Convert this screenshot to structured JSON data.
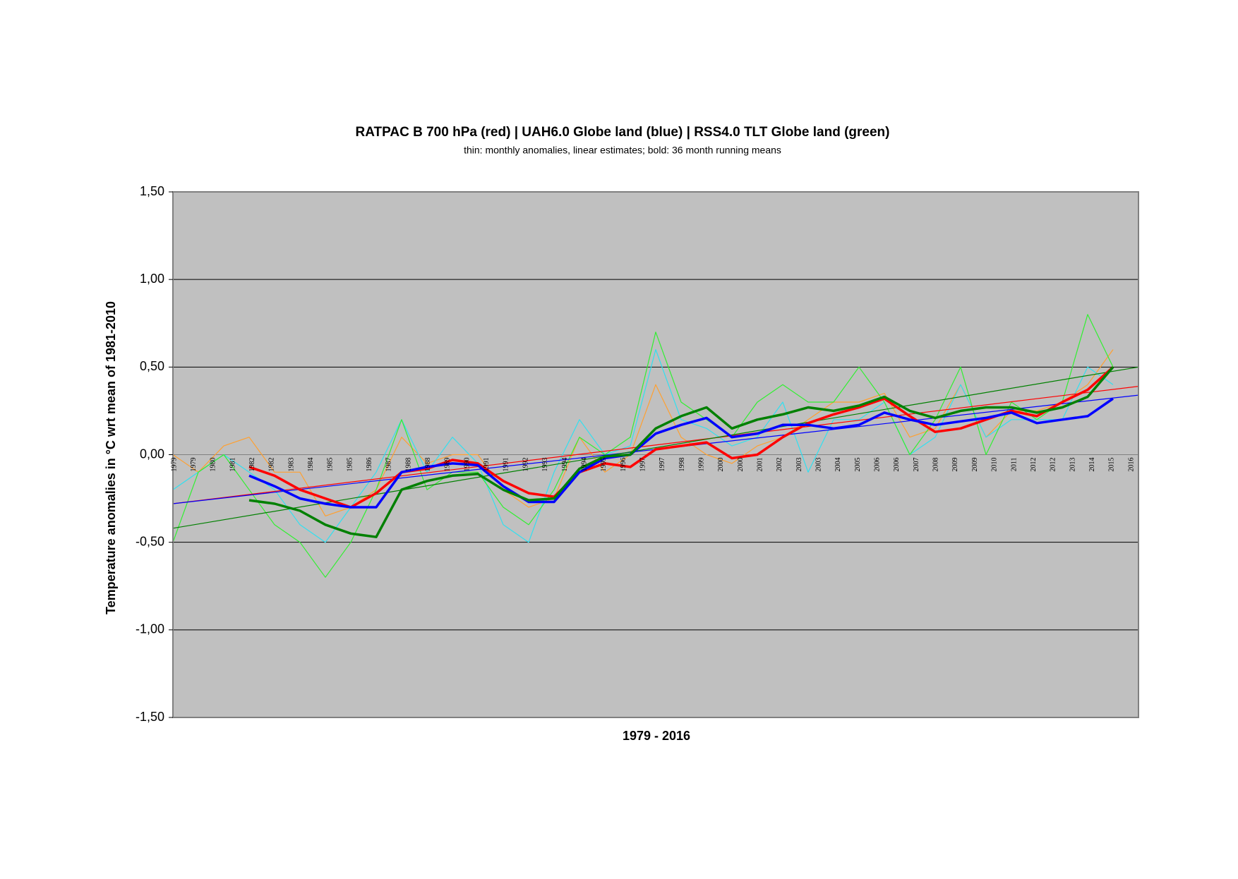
{
  "chart_data": {
    "type": "line",
    "title": "RATPAC B 700 hPa (red) | UAH6.0 Globe land (blue) | RSS4.0 TLT Globe land (green)",
    "subtitle": "thin: monthly anomalies, linear estimates; bold: 36 month running means",
    "y_label": "Temperature anomalies in °C wrt mean of 1981-2010",
    "x_label": "1979 - 2016",
    "xlim": [
      1979,
      2017
    ],
    "ylim": [
      -1.5,
      1.5
    ],
    "yticks": [
      {
        "value": -1.5,
        "label": "-1,50"
      },
      {
        "value": -1,
        "label": "-1,00"
      },
      {
        "value": -0.5,
        "label": "-0,50"
      },
      {
        "value": 0,
        "label": "0,00"
      },
      {
        "value": 0.5,
        "label": "0,50"
      },
      {
        "value": 1,
        "label": "1,00"
      },
      {
        "value": 1.5,
        "label": "1,50"
      }
    ],
    "grid": true,
    "year_labels": [
      "1979",
      "1979",
      "1980",
      "1981",
      "1982",
      "1982",
      "1983",
      "1984",
      "1985",
      "1985",
      "1986",
      "1987",
      "1988",
      "1988",
      "1989",
      "1990",
      "1991",
      "1991",
      "1992",
      "1993",
      "1994",
      "1994",
      "1995",
      "1996",
      "1997",
      "1997",
      "1998",
      "1999",
      "2000",
      "2000",
      "2001",
      "2002",
      "2003",
      "2003",
      "2004",
      "2005",
      "2006",
      "2006",
      "2007",
      "2008",
      "2009",
      "2009",
      "2010",
      "2011",
      "2012",
      "2012",
      "2013",
      "2014",
      "2015",
      "2016"
    ],
    "series": [
      {
        "color": "#ffa030",
        "style": "thin",
        "x": [
          1979,
          1980,
          1981,
          1982,
          1983,
          1984,
          1985,
          1986,
          1987,
          1988,
          1989,
          1990,
          1991,
          1992,
          1993,
          1994,
          1995,
          1996,
          1997,
          1998,
          1999,
          2000,
          2001,
          2002,
          2003,
          2004,
          2005,
          2006,
          2007,
          2008,
          2009,
          2010,
          2011,
          2012,
          2013,
          2014,
          2015,
          2016
        ],
        "values": [
          0.0,
          -0.1,
          0.05,
          0.1,
          -0.1,
          -0.1,
          -0.35,
          -0.3,
          -0.2,
          0.1,
          -0.05,
          0.0,
          0.0,
          -0.2,
          -0.3,
          -0.25,
          0.1,
          -0.1,
          0.0,
          0.4,
          0.1,
          0.0,
          -0.05,
          0.05,
          0.1,
          0.2,
          0.3,
          0.3,
          0.35,
          0.1,
          0.15,
          0.4,
          0.1,
          0.25,
          0.25,
          0.3,
          0.4,
          0.6
        ]
      },
      {
        "color": "#30e0f0",
        "style": "thin",
        "x": [
          1979,
          1980,
          1981,
          1982,
          1983,
          1984,
          1985,
          1986,
          1987,
          1988,
          1989,
          1990,
          1991,
          1992,
          1993,
          1994,
          1995,
          1996,
          1997,
          1998,
          1999,
          2000,
          2001,
          2002,
          2003,
          2004,
          2005,
          2006,
          2007,
          2008,
          2009,
          2010,
          2011,
          2012,
          2013,
          2014,
          2015,
          2016
        ],
        "values": [
          -0.2,
          -0.1,
          0.0,
          -0.1,
          -0.2,
          -0.4,
          -0.5,
          -0.3,
          -0.1,
          0.2,
          -0.1,
          0.1,
          -0.05,
          -0.4,
          -0.5,
          -0.1,
          0.2,
          0.0,
          0.05,
          0.6,
          0.2,
          0.15,
          0.05,
          0.1,
          0.3,
          -0.1,
          0.2,
          0.2,
          0.3,
          0.0,
          0.1,
          0.4,
          0.1,
          0.2,
          0.2,
          0.2,
          0.5,
          0.4
        ]
      },
      {
        "color": "#30f030",
        "style": "thin",
        "x": [
          1979,
          1980,
          1981,
          1982,
          1983,
          1984,
          1985,
          1986,
          1987,
          1988,
          1989,
          1990,
          1991,
          1992,
          1993,
          1994,
          1995,
          1996,
          1997,
          1998,
          1999,
          2000,
          2001,
          2002,
          2003,
          2004,
          2005,
          2006,
          2007,
          2008,
          2009,
          2010,
          2011,
          2012,
          2013,
          2014,
          2015,
          2016
        ],
        "values": [
          -0.5,
          -0.1,
          0.0,
          -0.2,
          -0.4,
          -0.5,
          -0.7,
          -0.5,
          -0.2,
          0.2,
          -0.2,
          -0.1,
          -0.1,
          -0.3,
          -0.4,
          -0.2,
          0.1,
          0.0,
          0.1,
          0.7,
          0.3,
          0.2,
          0.1,
          0.3,
          0.4,
          0.3,
          0.3,
          0.5,
          0.3,
          0.0,
          0.2,
          0.5,
          0.0,
          0.3,
          0.2,
          0.3,
          0.8,
          0.5
        ]
      },
      {
        "color": "#ff0000",
        "style": "thin",
        "x": [
          1979,
          2017
        ],
        "values": [
          -0.28,
          0.39
        ]
      },
      {
        "color": "#0000ff",
        "style": "thin",
        "x": [
          1979,
          2017
        ],
        "values": [
          -0.28,
          0.34
        ]
      },
      {
        "color": "#008000",
        "style": "thin",
        "x": [
          1979,
          2017
        ],
        "values": [
          -0.42,
          0.5
        ]
      },
      {
        "color": "#ff0000",
        "style": "bold",
        "x": [
          1982,
          1983,
          1984,
          1985,
          1986,
          1987,
          1988,
          1989,
          1990,
          1991,
          1992,
          1993,
          1994,
          1995,
          1996,
          1997,
          1998,
          1999,
          2000,
          2001,
          2002,
          2003,
          2004,
          2005,
          2006,
          2007,
          2008,
          2009,
          2010,
          2011,
          2012,
          2013,
          2014,
          2015,
          2016
        ],
        "values": [
          -0.07,
          -0.12,
          -0.2,
          -0.25,
          -0.3,
          -0.22,
          -0.1,
          -0.08,
          -0.03,
          -0.05,
          -0.15,
          -0.22,
          -0.24,
          -0.1,
          -0.05,
          -0.07,
          0.03,
          0.05,
          0.07,
          -0.02,
          0.0,
          0.1,
          0.18,
          0.23,
          0.27,
          0.32,
          0.22,
          0.13,
          0.15,
          0.2,
          0.25,
          0.22,
          0.3,
          0.37,
          0.5
        ]
      },
      {
        "color": "#0000ff",
        "style": "bold",
        "x": [
          1982,
          1983,
          1984,
          1985,
          1986,
          1987,
          1988,
          1989,
          1990,
          1991,
          1992,
          1993,
          1994,
          1995,
          1996,
          1997,
          1998,
          1999,
          2000,
          2001,
          2002,
          2003,
          2004,
          2005,
          2006,
          2007,
          2008,
          2009,
          2010,
          2011,
          2012,
          2013,
          2014,
          2015,
          2016
        ],
        "values": [
          -0.12,
          -0.18,
          -0.25,
          -0.28,
          -0.3,
          -0.3,
          -0.1,
          -0.07,
          -0.05,
          -0.06,
          -0.18,
          -0.27,
          -0.27,
          -0.1,
          -0.02,
          0.0,
          0.12,
          0.17,
          0.21,
          0.1,
          0.12,
          0.17,
          0.17,
          0.15,
          0.17,
          0.24,
          0.2,
          0.17,
          0.19,
          0.21,
          0.24,
          0.18,
          0.2,
          0.22,
          0.32
        ]
      },
      {
        "color": "#008000",
        "style": "bold",
        "x": [
          1982,
          1983,
          1984,
          1985,
          1986,
          1987,
          1988,
          1989,
          1990,
          1991,
          1992,
          1993,
          1994,
          1995,
          1996,
          1997,
          1998,
          1999,
          2000,
          2001,
          2002,
          2003,
          2004,
          2005,
          2006,
          2007,
          2008,
          2009,
          2010,
          2011,
          2012,
          2013,
          2014,
          2015,
          2016
        ],
        "values": [
          -0.26,
          -0.28,
          -0.32,
          -0.4,
          -0.45,
          -0.47,
          -0.2,
          -0.15,
          -0.12,
          -0.11,
          -0.2,
          -0.26,
          -0.25,
          -0.08,
          -0.01,
          0.0,
          0.15,
          0.22,
          0.27,
          0.15,
          0.2,
          0.23,
          0.27,
          0.25,
          0.28,
          0.33,
          0.25,
          0.21,
          0.25,
          0.27,
          0.27,
          0.24,
          0.27,
          0.33,
          0.5
        ]
      }
    ]
  }
}
